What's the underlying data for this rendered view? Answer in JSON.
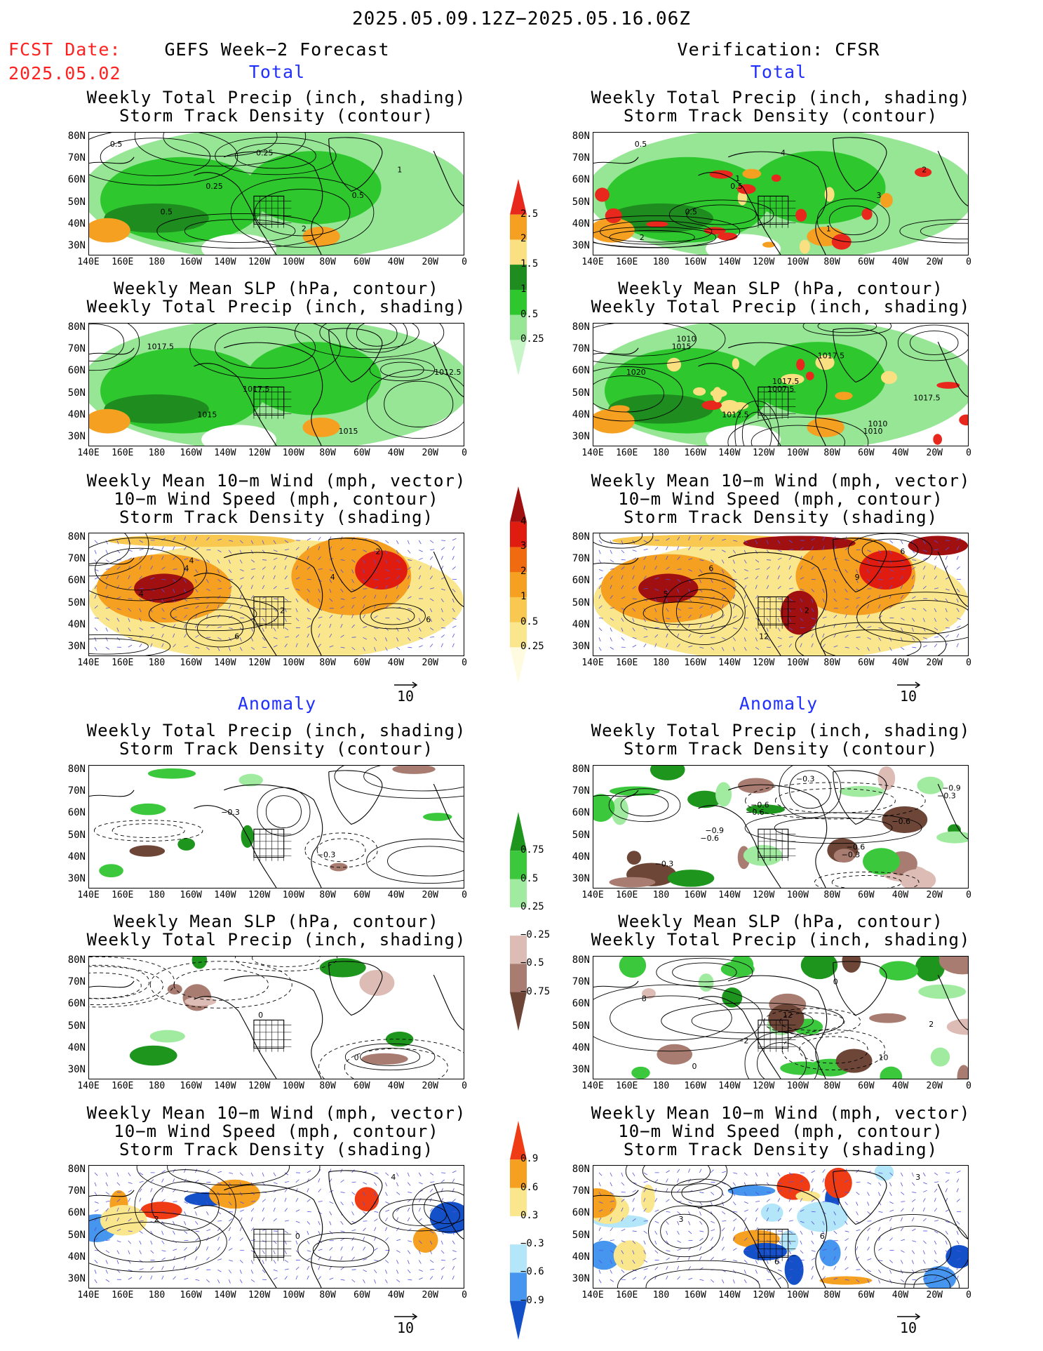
{
  "header": {
    "title": "2025.05.09.12Z−2025.05.16.06Z",
    "fcst_label": "FCST Date:",
    "fcst_date": "2025.05.02",
    "left_title": "GEFS Week−2 Forecast",
    "right_title": "Verification: CFSR"
  },
  "sections": {
    "total": "Total",
    "anomaly": "Anomaly"
  },
  "panel_titles": {
    "precip_track": [
      "Weekly Total Precip (inch, shading)",
      "Storm Track Density (contour)"
    ],
    "slp_precip": [
      "Weekly Mean SLP (hPa, contour)",
      "Weekly Total Precip (inch, shading)"
    ],
    "wind": [
      "Weekly Mean 10−m Wind (mph, vector)",
      "10−m Wind Speed (mph, contour)",
      "Storm Track Density (shading)"
    ]
  },
  "axes": {
    "lat_labels": [
      "80N",
      "70N",
      "60N",
      "50N",
      "40N",
      "30N"
    ],
    "lon_labels": [
      "140E",
      "160E",
      "180",
      "160W",
      "140W",
      "120W",
      "100W",
      "80W",
      "60W",
      "40W",
      "20W",
      "0"
    ]
  },
  "vector_ref": "10",
  "colorbars": {
    "precip_total": {
      "labels": [
        "2.5",
        "2",
        "1.5",
        "1",
        "0.5",
        "0.25"
      ],
      "colors": [
        "#e8281c",
        "#f5a020",
        "#fae080",
        "#1e8c1e",
        "#2ec82e",
        "#96e696",
        "#c8f5c8"
      ]
    },
    "track_total": {
      "labels": [
        "4",
        "3",
        "2",
        "1",
        "0.5",
        "0.25"
      ],
      "colors": [
        "#a01010",
        "#e01c10",
        "#f06a10",
        "#f5a020",
        "#f8c850",
        "#fae68c",
        "#fffbe0"
      ]
    },
    "precip_anom": {
      "labels": [
        "0.75",
        "0.5",
        "0.25",
        "−0.25",
        "−0.5",
        "−0.75"
      ],
      "colors": [
        "#1e961e",
        "#3cc83c",
        "#a0eba0",
        "#ffffff",
        "#dcbcb4",
        "#a87c70",
        "#6e4638"
      ]
    },
    "track_anom": {
      "labels": [
        "0.9",
        "0.6",
        "0.3",
        "−0.3",
        "−0.6",
        "−0.9"
      ],
      "colors": [
        "#f03c14",
        "#f5a020",
        "#fae68c",
        "#ffffff",
        "#b4e6fa",
        "#4696f0",
        "#1450c8"
      ]
    }
  },
  "contour_labels": {
    "l1": [
      "0.5",
      "0.25",
      "2",
      "1",
      "0.5",
      "0.25",
      "0.5"
    ],
    "r1": [
      "0.5",
      "0.5",
      "1",
      "2",
      "0.5",
      "4",
      "3",
      "2",
      "1"
    ],
    "l2": [
      "1017.5",
      "1017.5",
      "1015",
      "1012.5",
      "1015"
    ],
    "r2": [
      "1015",
      "1007.5",
      "1010",
      "1020",
      "1012.5",
      "1017.5",
      "1017.5",
      "1010",
      "1017.5",
      "1010"
    ],
    "l3": [
      "4",
      "2",
      "2",
      "4",
      "6",
      "4",
      "6",
      "4"
    ],
    "r3": [
      "6",
      "2",
      "6",
      "5",
      "12",
      "9"
    ],
    "l4": [
      "−0.3",
      "−0.3"
    ],
    "r4": [
      "−0.6",
      "−0.3",
      "−0.3",
      "−0.6",
      "−0.3",
      "−0.6",
      "−0.3",
      "−0.6",
      "−0.6",
      "−0.9",
      "−0.9"
    ],
    "l5": [
      "0",
      "0"
    ],
    "r5": [
      "12",
      "10",
      "8",
      "−2",
      "0",
      "2",
      "0"
    ],
    "l6": [
      "0",
      "4",
      "2"
    ],
    "r6": [
      "6",
      "3",
      "3",
      "6"
    ]
  }
}
